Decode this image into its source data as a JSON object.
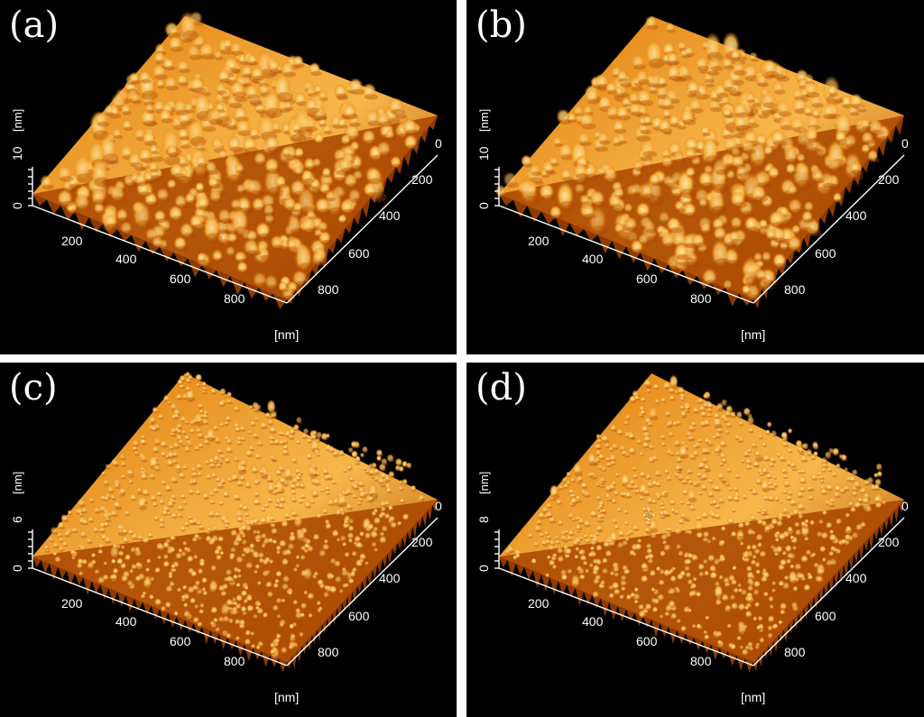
{
  "panels": [
    {
      "id": "a",
      "letter": "(a)",
      "z_max_label": "10",
      "z_min_label": "0",
      "z_unit": "[nm]",
      "x_ticks": [
        "200",
        "400",
        "600",
        "800"
      ],
      "y_ticks": [
        "0",
        "200",
        "400",
        "600",
        "800"
      ],
      "x_unit": "[nm]",
      "texture": "coarse"
    },
    {
      "id": "b",
      "letter": "(b)",
      "z_max_label": "10",
      "z_min_label": "0",
      "z_unit": "[nm]",
      "x_ticks": [
        "200",
        "400",
        "600",
        "800"
      ],
      "y_ticks": [
        "0",
        "200",
        "400",
        "600",
        "800"
      ],
      "x_unit": "[nm]",
      "texture": "coarse"
    },
    {
      "id": "c",
      "letter": "(c)",
      "z_max_label": "6",
      "z_min_label": "0",
      "z_unit": "[nm]",
      "x_ticks": [
        "200",
        "400",
        "600",
        "800"
      ],
      "y_ticks": [
        "0",
        "200",
        "400",
        "600",
        "800"
      ],
      "x_unit": "[nm]",
      "texture": "fine"
    },
    {
      "id": "d",
      "letter": "(d)",
      "z_max_label": "8",
      "z_min_label": "0",
      "z_unit": "[nm]",
      "x_ticks": [
        "200",
        "400",
        "600",
        "800"
      ],
      "y_ticks": [
        "0",
        "200",
        "400",
        "600",
        "800"
      ],
      "x_unit": "[nm]",
      "texture": "fine"
    }
  ],
  "colors": {
    "background": "#000000",
    "surface_dark": "#a84500",
    "surface_mid": "#e07a0a",
    "surface_light": "#f7b84a",
    "highlight": "#ffe6a8",
    "separator": "#ffffff",
    "axis": "#ffffff"
  },
  "cursor": {
    "icon": "crosshair-cursor-icon"
  }
}
